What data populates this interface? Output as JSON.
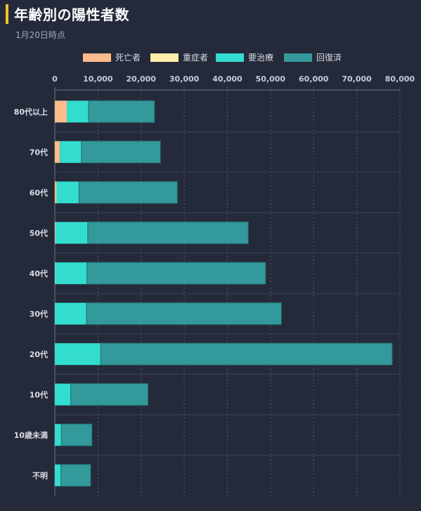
{
  "header": {
    "title": "年齢別の陽性者数",
    "subtitle": "1月20日時点"
  },
  "colors": {
    "background": "#252a3a",
    "title_accent": "#f2c230",
    "death": "#ffbb8b",
    "severe": "#ffeeaa",
    "treatment": "#32ddcf",
    "recovered": "#33999a"
  },
  "chart_data": {
    "type": "bar",
    "orientation": "horizontal",
    "stacked": true,
    "title": "",
    "xlabel": "",
    "ylabel": "",
    "xlim": [
      0,
      80000
    ],
    "x_ticks": [
      "0",
      "10,000",
      "20,000",
      "30,000",
      "40,000",
      "50,000",
      "60,000",
      "70,000",
      "80,000"
    ],
    "grid": true,
    "legend_position": "top",
    "categories": [
      "80代以上",
      "70代",
      "60代",
      "50代",
      "40代",
      "30代",
      "20代",
      "10代",
      "10歳未満",
      "不明"
    ],
    "series": [
      {
        "name": "死亡者",
        "color": "#ffbb8b",
        "values": [
          2700,
          1100,
          350,
          100,
          40,
          15,
          5,
          0,
          0,
          0
        ]
      },
      {
        "name": "重症者",
        "color": "#ffeeaa",
        "values": [
          100,
          70,
          50,
          30,
          15,
          5,
          2,
          0,
          0,
          0
        ]
      },
      {
        "name": "要治療",
        "color": "#32ddcf",
        "values": [
          5000,
          5000,
          5200,
          7500,
          7400,
          7300,
          10600,
          3700,
          1500,
          1400
        ]
      },
      {
        "name": "回復済",
        "color": "#33999a",
        "values": [
          15300,
          18300,
          22800,
          37200,
          41400,
          45200,
          67600,
          17900,
          7100,
          6900
        ]
      }
    ]
  }
}
